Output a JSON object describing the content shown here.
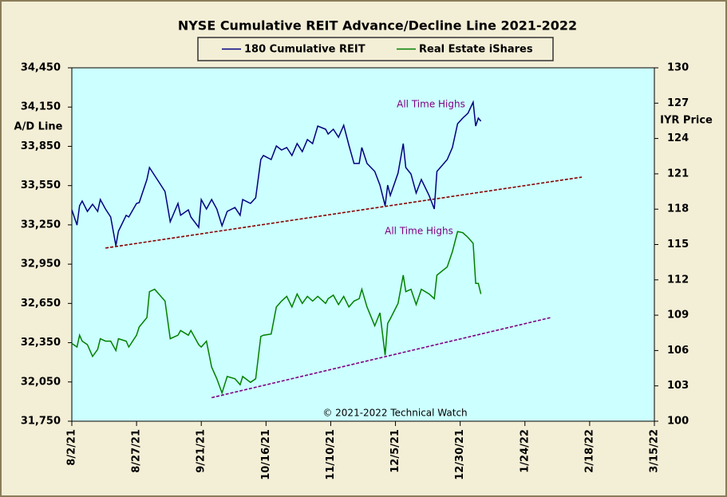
{
  "chart_data": {
    "type": "line",
    "title": "NYSE Cumulative  REIT Advance/Decline Line 2021-2022",
    "ylabel": "A/D Line",
    "y2label": "IYR Price",
    "credit": "© 2021-2022  Technical Watch",
    "annotations": [
      "All Time Highs",
      "All Time Highs"
    ],
    "x": [
      "2021-08-02",
      "2021-08-04",
      "2021-08-05",
      "2021-08-06",
      "2021-08-08",
      "2021-08-10",
      "2021-08-12",
      "2021-08-13",
      "2021-08-15",
      "2021-08-17",
      "2021-08-19",
      "2021-08-20",
      "2021-08-23",
      "2021-08-24",
      "2021-08-27",
      "2021-08-28",
      "2021-08-31",
      "2021-09-01",
      "2021-09-03",
      "2021-09-05",
      "2021-09-07",
      "2021-09-09",
      "2021-09-12",
      "2021-09-13",
      "2021-09-16",
      "2021-09-17",
      "2021-09-20",
      "2021-09-21",
      "2021-09-23",
      "2021-09-25",
      "2021-09-27",
      "2021-09-29",
      "2021-10-01",
      "2021-10-04",
      "2021-10-06",
      "2021-10-07",
      "2021-10-10",
      "2021-10-12",
      "2021-10-14",
      "2021-10-15",
      "2021-10-18",
      "2021-10-20",
      "2021-10-22",
      "2021-10-24",
      "2021-10-26",
      "2021-10-28",
      "2021-10-30",
      "2021-11-01",
      "2021-11-03",
      "2021-11-05",
      "2021-11-08",
      "2021-11-09",
      "2021-11-11",
      "2021-11-13",
      "2021-11-15",
      "2021-11-17",
      "2021-11-19",
      "2021-11-21",
      "2021-11-22",
      "2021-11-24",
      "2021-11-27",
      "2021-11-29",
      "2021-12-01",
      "2021-12-02",
      "2021-12-03",
      "2021-12-06",
      "2021-12-08",
      "2021-12-09",
      "2021-12-11",
      "2021-12-13",
      "2021-12-15",
      "2021-12-18",
      "2021-12-20",
      "2021-12-21",
      "2021-12-25",
      "2021-12-27",
      "2021-12-29",
      "2021-12-31",
      "2022-01-02",
      "2022-01-04",
      "2022-01-05",
      "2022-01-06",
      "2022-01-07"
    ],
    "series": [
      {
        "name": "180 Cumulative REIT",
        "color": "#000080",
        "axis": "y",
        "values": [
          33365,
          33249,
          33396,
          33432,
          33353,
          33408,
          33353,
          33444,
          33371,
          33310,
          33091,
          33201,
          33323,
          33310,
          33414,
          33420,
          33597,
          33688,
          33627,
          33566,
          33505,
          33274,
          33414,
          33323,
          33365,
          33310,
          33231,
          33444,
          33371,
          33444,
          33371,
          33243,
          33353,
          33383,
          33323,
          33444,
          33414,
          33457,
          33749,
          33780,
          33749,
          33853,
          33822,
          33841,
          33780,
          33871,
          33810,
          33902,
          33871,
          34005,
          33981,
          33944,
          33981,
          33920,
          34011,
          33859,
          33719,
          33719,
          33841,
          33719,
          33658,
          33554,
          33396,
          33554,
          33475,
          33646,
          33871,
          33688,
          33639,
          33493,
          33597,
          33475,
          33371,
          33658,
          33749,
          33841,
          34023,
          34066,
          34103,
          34188,
          34005,
          34066,
          34042
        ]
      },
      {
        "name": "Real Estate iShares",
        "color": "#008000",
        "axis": "y2",
        "values": [
          106.6,
          106.3,
          107.3,
          106.8,
          106.5,
          105.5,
          106.1,
          107.0,
          106.8,
          106.8,
          106.0,
          107.0,
          106.8,
          106.3,
          107.3,
          108.0,
          108.8,
          111.0,
          111.2,
          110.7,
          110.2,
          107.0,
          107.3,
          107.7,
          107.3,
          107.7,
          106.5,
          106.3,
          106.8,
          104.6,
          103.6,
          102.4,
          103.8,
          103.6,
          103.1,
          103.8,
          103.3,
          103.6,
          107.2,
          107.3,
          107.4,
          109.7,
          110.2,
          110.6,
          109.7,
          110.8,
          110.0,
          110.6,
          110.2,
          110.6,
          110.0,
          110.4,
          110.7,
          109.9,
          110.6,
          109.7,
          110.2,
          110.4,
          111.2,
          109.7,
          108.1,
          109.2,
          105.6,
          108.3,
          108.7,
          110.0,
          112.4,
          111.0,
          111.2,
          109.9,
          111.2,
          110.8,
          110.4,
          112.4,
          113.1,
          114.4,
          116.1,
          116.0,
          115.6,
          115.1,
          111.7,
          111.7,
          110.8
        ]
      }
    ],
    "trendlines": [
      {
        "color": "#8b0000",
        "axis": "y",
        "x": [
          "2021-08-15",
          "2022-02-15"
        ],
        "values": [
          33073,
          33615
        ]
      },
      {
        "color": "#800080",
        "axis": "y2",
        "x": [
          "2021-09-25",
          "2022-02-03"
        ],
        "values": [
          102.0,
          108.8
        ]
      }
    ],
    "annotation_color": "#800080",
    "plot_background": "#ccffff",
    "xlim": [
      "2021-08-02",
      "2022-03-15"
    ],
    "xticks": [
      {
        "value": "2021-08-02",
        "label": "8/2/21"
      },
      {
        "value": "2021-08-27",
        "label": "8/27/21"
      },
      {
        "value": "2021-09-21",
        "label": "9/21/21"
      },
      {
        "value": "2021-10-16",
        "label": "10/16/21"
      },
      {
        "value": "2021-11-10",
        "label": "11/10/21"
      },
      {
        "value": "2021-12-05",
        "label": "12/5/21"
      },
      {
        "value": "2021-12-30",
        "label": "12/30/21"
      },
      {
        "value": "2022-01-24",
        "label": "1/24/22"
      },
      {
        "value": "2022-02-18",
        "label": "2/18/22"
      },
      {
        "value": "2022-03-15",
        "label": "3/15/22"
      }
    ],
    "ylim": [
      31750,
      34450
    ],
    "yticks": [
      {
        "value": 31750,
        "label": "31,750"
      },
      {
        "value": 32050,
        "label": "32,050"
      },
      {
        "value": 32350,
        "label": "32,350"
      },
      {
        "value": 32650,
        "label": "32,650"
      },
      {
        "value": 32950,
        "label": "32,950"
      },
      {
        "value": 33250,
        "label": "33,250"
      },
      {
        "value": 33550,
        "label": "33,550"
      },
      {
        "value": 33850,
        "label": "33,850"
      },
      {
        "value": 34150,
        "label": "34,150"
      },
      {
        "value": 34450,
        "label": "34,450"
      }
    ],
    "y2lim": [
      100,
      130
    ],
    "y2ticks": [
      100,
      103,
      106,
      109,
      112,
      115,
      118,
      121,
      124,
      127,
      130
    ],
    "grid": false
  }
}
